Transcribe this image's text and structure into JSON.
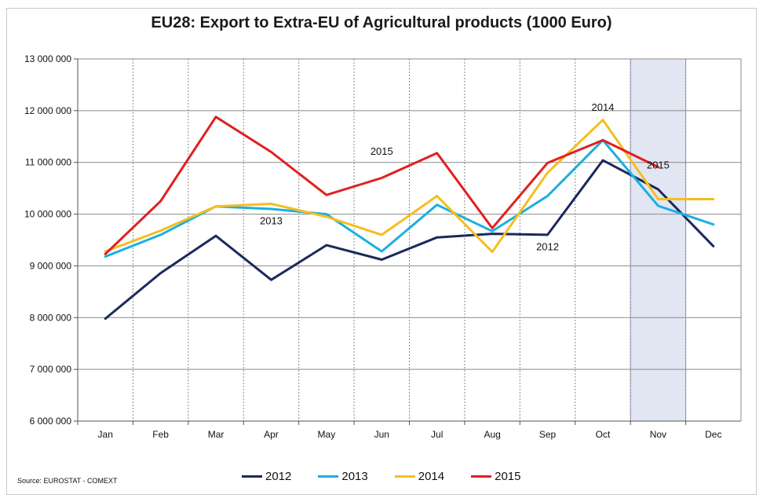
{
  "chart_data": {
    "type": "line",
    "title": "EU28: Export to Extra-EU of Agricultural products (1000 Euro)",
    "xlabel": "",
    "ylabel": "",
    "categories": [
      "Jan",
      "Feb",
      "Mar",
      "Apr",
      "May",
      "Jun",
      "Jul",
      "Aug",
      "Sep",
      "Oct",
      "Nov",
      "Dec"
    ],
    "ylim": [
      6000000,
      13000000
    ],
    "yticks": [
      6000000,
      7000000,
      8000000,
      9000000,
      10000000,
      11000000,
      12000000,
      13000000
    ],
    "ytick_labels": [
      "6 000 000",
      "7 000 000",
      "8 000 000",
      "9 000 000",
      "10 000 000",
      "11 000 000",
      "12 000 000",
      "13 000 000"
    ],
    "grid": true,
    "highlight_category": "Nov",
    "legend_position": "bottom",
    "series": [
      {
        "name": "2012",
        "color": "#1b2a5c",
        "values": [
          7980000,
          8860000,
          9580000,
          8730000,
          9400000,
          9120000,
          9550000,
          9620000,
          9600000,
          11040000,
          10480000,
          9380000
        ]
      },
      {
        "name": "2013",
        "color": "#1ab0e0",
        "values": [
          9180000,
          9600000,
          10150000,
          10100000,
          10000000,
          9280000,
          10180000,
          9670000,
          10350000,
          11430000,
          10160000,
          9800000
        ]
      },
      {
        "name": "2014",
        "color": "#f5be1e",
        "values": [
          9280000,
          9680000,
          10150000,
          10200000,
          9950000,
          9600000,
          10350000,
          9270000,
          10800000,
          11820000,
          10290000,
          10290000
        ]
      },
      {
        "name": "2015",
        "color": "#e02020",
        "values": [
          9230000,
          10250000,
          11880000,
          11200000,
          10370000,
          10700000,
          11180000,
          9730000,
          10990000,
          11430000,
          10910000,
          null
        ]
      }
    ],
    "annotations": [
      {
        "text": "2015",
        "x": "Jun",
        "y": 11150000
      },
      {
        "text": "2013",
        "x": "Apr",
        "y": 9800000
      },
      {
        "text": "2012",
        "x": "Sep",
        "y": 9300000
      },
      {
        "text": "2014",
        "x": "Oct",
        "y": 12000000
      },
      {
        "text": "2015",
        "x": "Nov",
        "y": 10880000
      }
    ]
  },
  "source": "Source: EUROSTAT - COMEXT"
}
